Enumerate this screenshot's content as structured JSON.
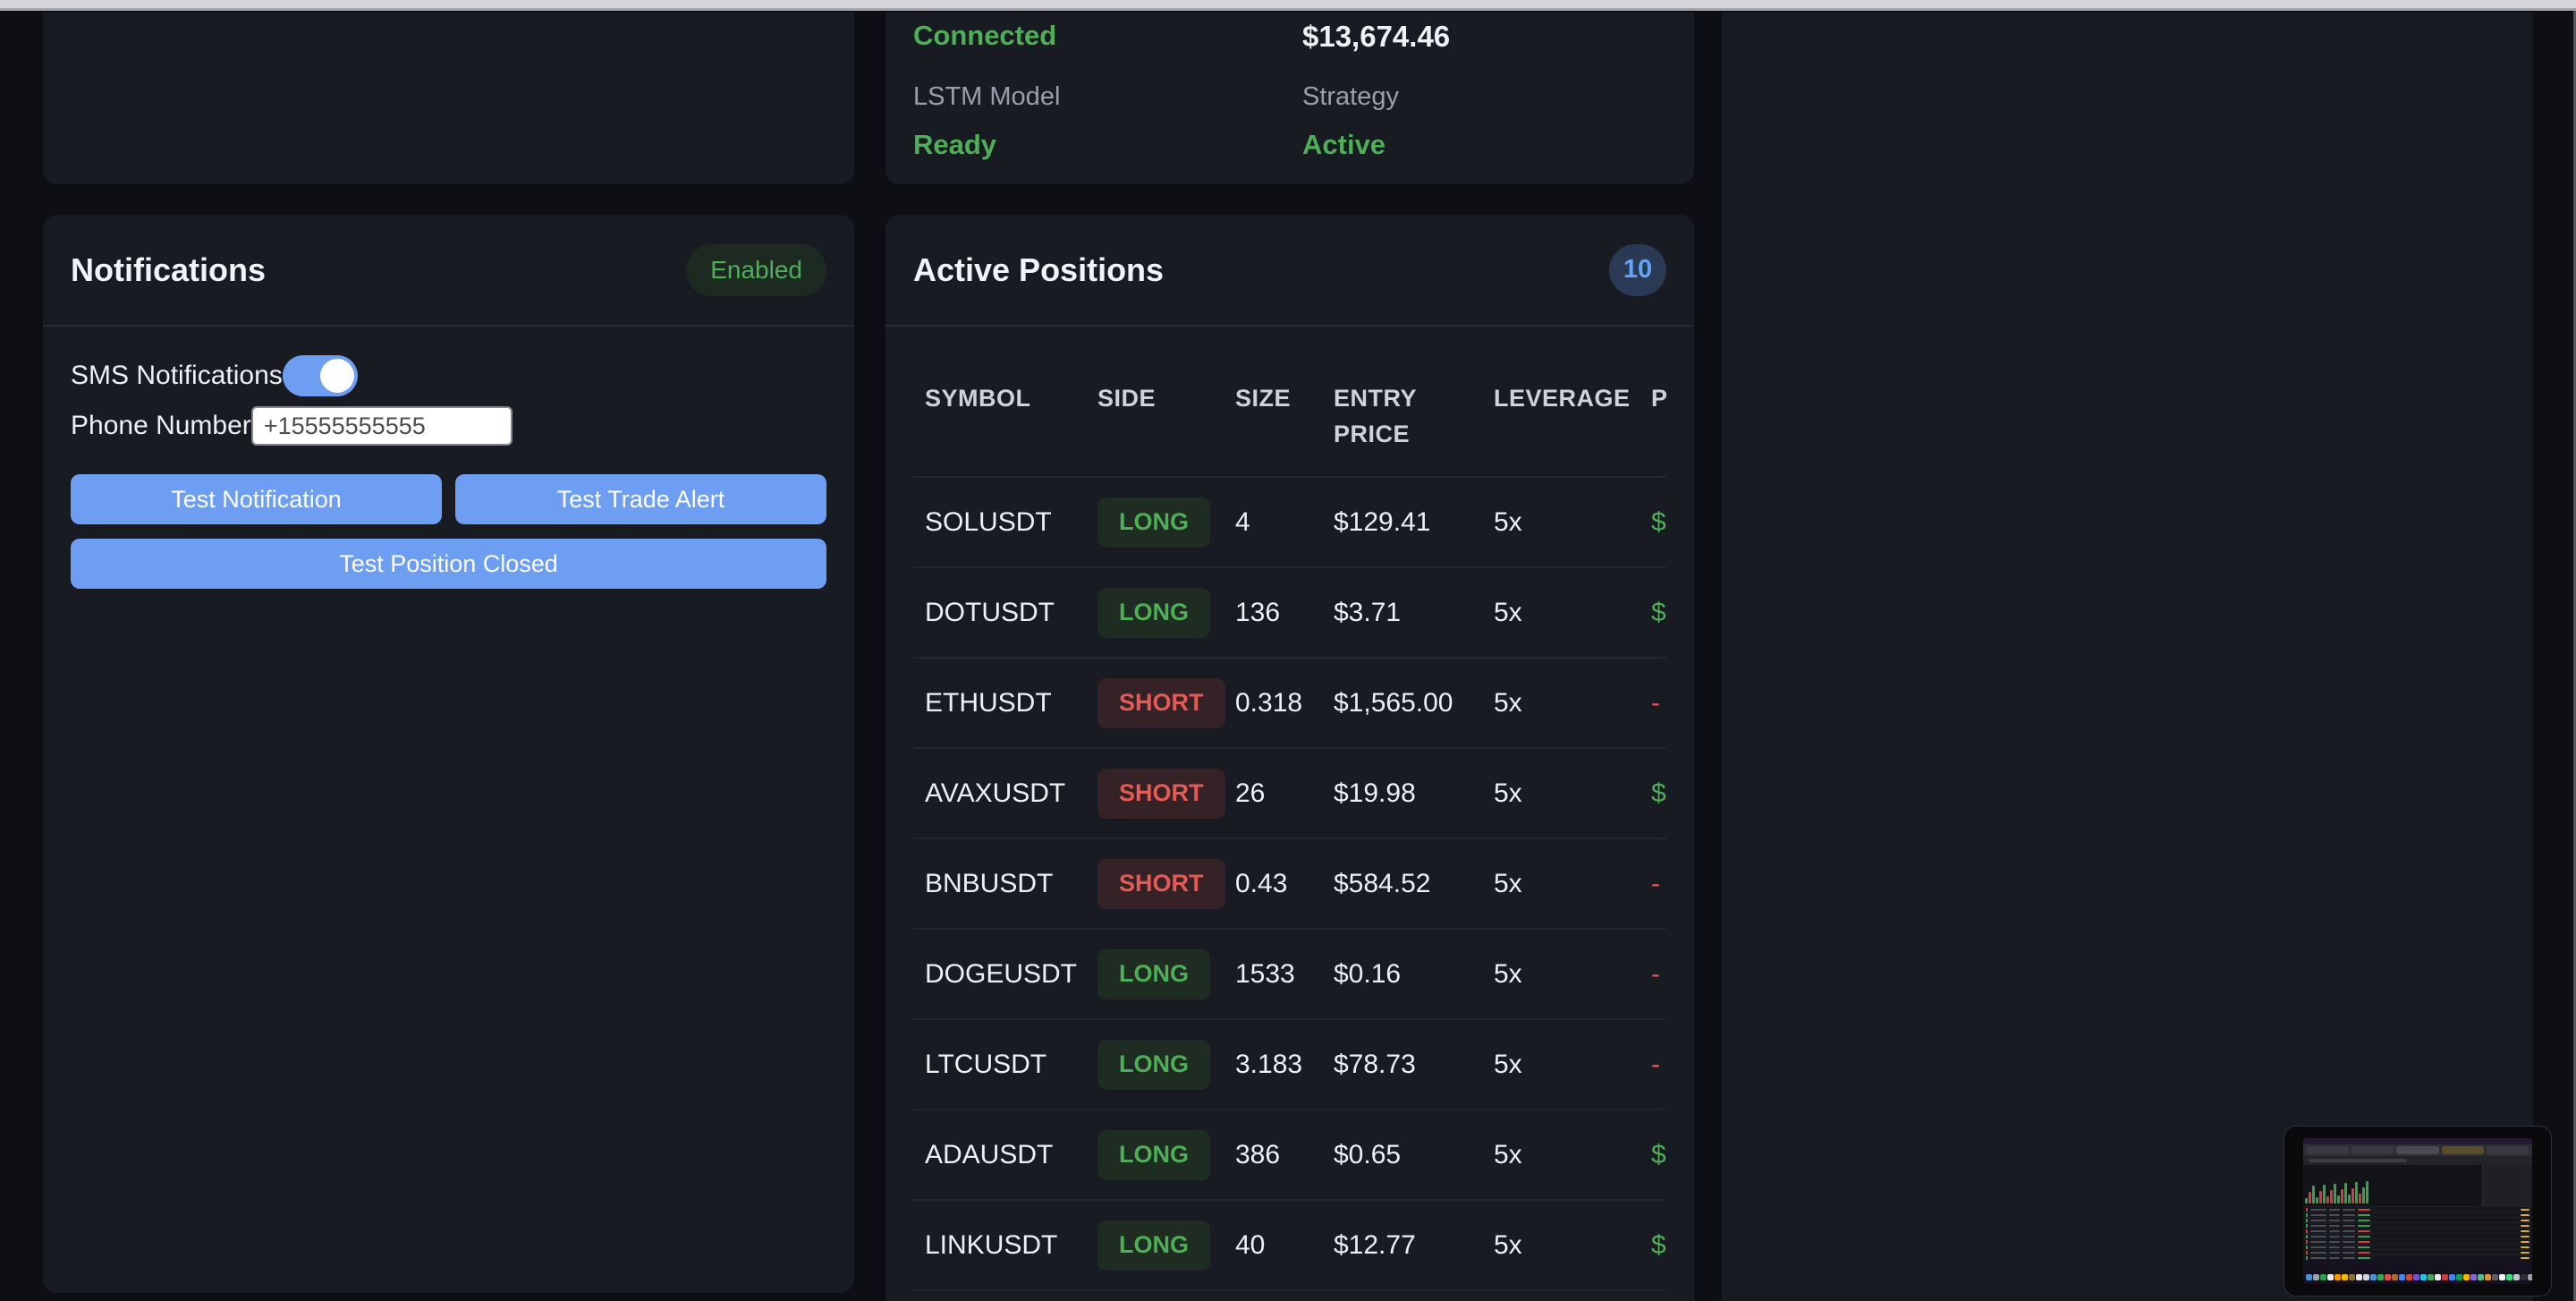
{
  "status_panel": {
    "connection_value": "Connected",
    "balance_value": "$13,674.46",
    "lstm_label": "LSTM Model",
    "lstm_value": "Ready",
    "strategy_label": "Strategy",
    "strategy_value": "Active"
  },
  "notifications": {
    "title": "Notifications",
    "status_badge": "Enabled",
    "sms_label": "SMS Notifications",
    "phone_label": "Phone Number",
    "phone_value": "+15555555555",
    "buttons": {
      "test_notification": "Test Notification",
      "test_trade_alert": "Test Trade Alert",
      "test_position_closed": "Test Position Closed"
    }
  },
  "positions": {
    "title": "Active Positions",
    "count_badge": "10",
    "headers": [
      "SYMBOL",
      "SIDE",
      "SIZE",
      "ENTRY PRICE",
      "LEVERAGE",
      "P"
    ],
    "rows": [
      {
        "symbol": "SOLUSDT",
        "side": "LONG",
        "size": "4",
        "entry_price": "$129.41",
        "leverage": "5x",
        "pnl": "$",
        "pnl_positive": true
      },
      {
        "symbol": "DOTUSDT",
        "side": "LONG",
        "size": "136",
        "entry_price": "$3.71",
        "leverage": "5x",
        "pnl": "$",
        "pnl_positive": true
      },
      {
        "symbol": "ETHUSDT",
        "side": "SHORT",
        "size": "0.318",
        "entry_price": "$1,565.00",
        "leverage": "5x",
        "pnl": "-",
        "pnl_positive": false
      },
      {
        "symbol": "AVAXUSDT",
        "side": "SHORT",
        "size": "26",
        "entry_price": "$19.98",
        "leverage": "5x",
        "pnl": "$",
        "pnl_positive": true
      },
      {
        "symbol": "BNBUSDT",
        "side": "SHORT",
        "size": "0.43",
        "entry_price": "$584.52",
        "leverage": "5x",
        "pnl": "-",
        "pnl_positive": false
      },
      {
        "symbol": "DOGEUSDT",
        "side": "LONG",
        "size": "1533",
        "entry_price": "$0.16",
        "leverage": "5x",
        "pnl": "-",
        "pnl_positive": false
      },
      {
        "symbol": "LTCUSDT",
        "side": "LONG",
        "size": "3.183",
        "entry_price": "$78.73",
        "leverage": "5x",
        "pnl": "-",
        "pnl_positive": false
      },
      {
        "symbol": "ADAUSDT",
        "side": "LONG",
        "size": "386",
        "entry_price": "$0.65",
        "leverage": "5x",
        "pnl": "$",
        "pnl_positive": true
      },
      {
        "symbol": "LINKUSDT",
        "side": "LONG",
        "size": "40",
        "entry_price": "$12.77",
        "leverage": "5x",
        "pnl": "$",
        "pnl_positive": true
      }
    ]
  },
  "colors": {
    "green": "#4fae58",
    "red": "#e4574f",
    "accent_blue": "#6d9ef1",
    "count_badge_bg": "#2b3a54",
    "count_badge_text": "#63a4f6",
    "panel_bg": "#181b22",
    "page_bg": "#0d0f14"
  },
  "thumbnail": {
    "description": "screen-share preview of Binance futures browser window with macOS dock",
    "chart_bars": [
      "g",
      "r",
      "g",
      "g",
      "r",
      "g",
      "r",
      "r",
      "g",
      "g",
      "r",
      "g",
      "g",
      "r",
      "g",
      "r",
      "g",
      "g"
    ],
    "mini_rows": [
      "r",
      "g",
      "g",
      "g",
      "r",
      "g",
      "r",
      "g",
      "r",
      "g"
    ],
    "dock_colors": [
      "#4a90d9",
      "#9aa0a6",
      "#2f9e44",
      "#e8eaed",
      "#f29900",
      "#fbbc04",
      "#8d6e3f",
      "#e8eaed",
      "#d0d2d6",
      "#4a90d9",
      "#34a853",
      "#e04f4f",
      "#b06e2c",
      "#4285f4",
      "#d44638",
      "#7b4fd4",
      "#24c1e0",
      "#46a35e",
      "#e8e8e8",
      "#cc3d3d",
      "#4285f4",
      "#0f9d58",
      "#f4b400",
      "#8a63d2",
      "#57bb8a",
      "#e0903f",
      "#5b6168",
      "#f1f3f4",
      "#3ddc84",
      "#c0c3c8",
      "#2b2e33",
      "#9aa0a6"
    ]
  }
}
